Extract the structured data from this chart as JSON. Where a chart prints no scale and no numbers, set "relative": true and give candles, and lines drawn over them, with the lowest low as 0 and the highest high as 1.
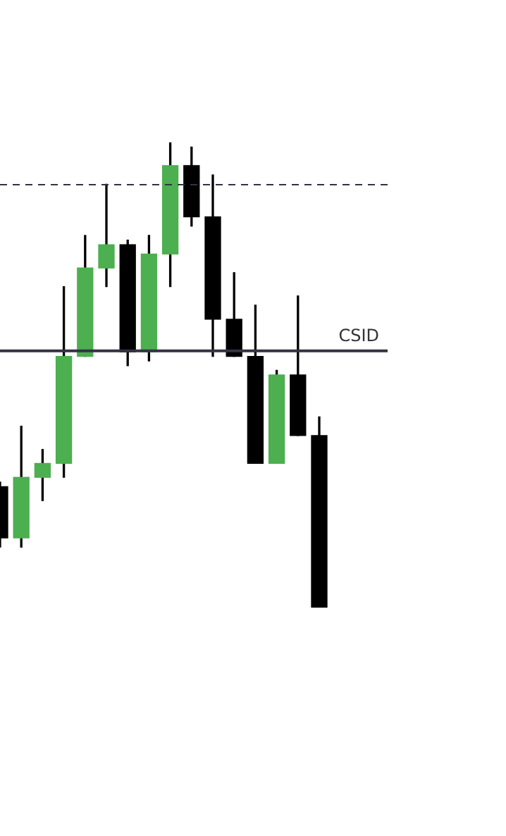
{
  "chart_data": {
    "type": "candlestick",
    "relative": true,
    "categories": [
      null,
      null,
      null,
      null,
      null,
      null,
      null,
      null,
      null,
      null,
      null,
      null,
      null,
      null,
      null,
      null
    ],
    "ohlc": [
      [
        0.26,
        0.27,
        0.13,
        0.15
      ],
      [
        0.15,
        0.39,
        0.13,
        0.28
      ],
      [
        0.28,
        0.34,
        0.23,
        0.31
      ],
      [
        0.31,
        0.69,
        0.28,
        0.54
      ],
      [
        0.54,
        0.8,
        0.54,
        0.73
      ],
      [
        0.73,
        0.91,
        0.69,
        0.78
      ],
      [
        0.78,
        0.79,
        0.52,
        0.55
      ],
      [
        0.55,
        0.8,
        0.53,
        0.76
      ],
      [
        0.76,
        1.0,
        0.69,
        0.95
      ],
      [
        0.95,
        0.99,
        0.82,
        0.84
      ],
      [
        0.84,
        0.93,
        0.54,
        0.62
      ],
      [
        0.62,
        0.72,
        0.54,
        0.54
      ],
      [
        0.54,
        0.65,
        0.31,
        0.31
      ],
      [
        0.31,
        0.51,
        0.31,
        0.5
      ],
      [
        0.5,
        0.67,
        0.37,
        0.37
      ],
      [
        0.37,
        0.41,
        0,
        0
      ]
    ],
    "colors": [
      "#000000",
      "#4caf50",
      "#4caf50",
      "#4caf50",
      "#4caf50",
      "#4caf50",
      "#000000",
      "#4caf50",
      "#4caf50",
      "#000000",
      "#000000",
      "#000000",
      "#000000",
      "#4caf50",
      "#000000",
      "#000000"
    ],
    "ref_lines": [
      {
        "axis": "y",
        "value": 0.552,
        "label": "CSID",
        "color": "#333344"
      },
      {
        "axis": "y",
        "value": 0.909,
        "label": null,
        "color": "#333344",
        "line_style": "dashed"
      }
    ],
    "legend": false
  }
}
